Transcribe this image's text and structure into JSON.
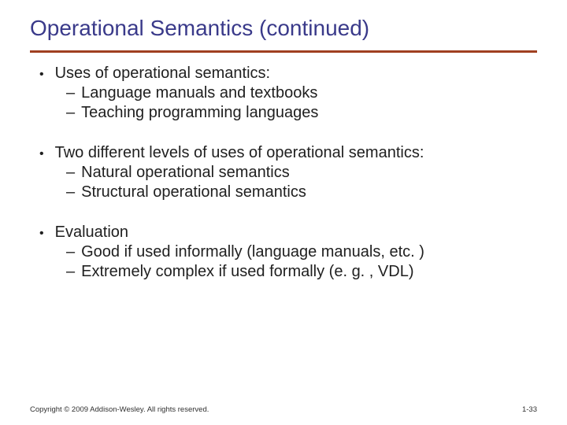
{
  "colors": {
    "title": "#3a3a8a",
    "rule": "#a04020",
    "body_text": "#202020",
    "background": "#ffffff"
  },
  "typography": {
    "title_fontsize": 28,
    "body_fontsize": 20,
    "footer_fontsize": 9.5
  },
  "title": "Operational Semantics (continued)",
  "bullets": [
    {
      "text": "Uses of operational semantics:",
      "subs": [
        "Language manuals and textbooks",
        "Teaching programming languages"
      ]
    },
    {
      "text": "Two different levels of uses of operational semantics:",
      "subs": [
        "Natural operational semantics",
        "Structural operational semantics"
      ]
    },
    {
      "text": "Evaluation",
      "subs": [
        "Good if used informally (language manuals, etc. )",
        "Extremely complex if used formally  (e. g. , VDL)"
      ]
    }
  ],
  "footer": {
    "copyright": "Copyright © 2009 Addison-Wesley. All rights reserved.",
    "page": "1-33"
  }
}
